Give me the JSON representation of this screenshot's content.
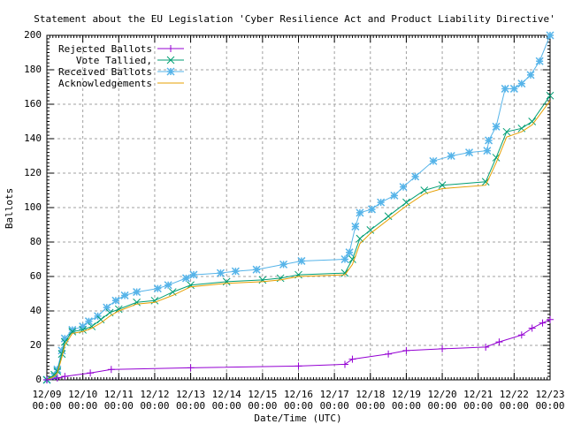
{
  "chart_data": {
    "type": "line",
    "title": "Statement about the EU Legislation 'Cyber Resilience Act and Product Liability Directive'",
    "xlabel": "Date/Time (UTC)",
    "ylabel": "Ballots",
    "xlim": [
      "12/09 00:00",
      "12/23 00:00"
    ],
    "ylim": [
      0,
      200
    ],
    "x_ticks": [
      "12/09",
      "12/10",
      "12/11",
      "12/12",
      "12/13",
      "12/14",
      "12/15",
      "12/16",
      "12/17",
      "12/18",
      "12/19",
      "12/20",
      "12/21",
      "12/22",
      "12/23"
    ],
    "x_tick_time": "00:00",
    "y_ticks": [
      0,
      20,
      40,
      60,
      80,
      100,
      120,
      140,
      160,
      180,
      200
    ],
    "grid": true,
    "legend_position": "top-left",
    "series": [
      {
        "name": "Rejected Ballots",
        "color": "#9400d3",
        "marker": "plus",
        "points": [
          [
            "12/09 00:00",
            0
          ],
          [
            "12/09 07:00",
            1
          ],
          [
            "12/09 12:00",
            2
          ],
          [
            "12/10 05:00",
            4
          ],
          [
            "12/10 19:00",
            6
          ],
          [
            "12/13 00:00",
            7
          ],
          [
            "12/16 00:00",
            8
          ],
          [
            "12/17 07:00",
            9
          ],
          [
            "12/17 12:00",
            12
          ],
          [
            "12/18 12:00",
            15
          ],
          [
            "12/19 00:00",
            17
          ],
          [
            "12/20 00:00",
            18
          ],
          [
            "12/21 05:00",
            19
          ],
          [
            "12/21 14:00",
            22
          ],
          [
            "12/22 05:00",
            26
          ],
          [
            "12/22 12:00",
            30
          ],
          [
            "12/22 19:00",
            33
          ],
          [
            "12/23 00:00",
            35
          ]
        ]
      },
      {
        "name": "Vote Tallied,",
        "color": "#009e73",
        "marker": "cross",
        "points": [
          [
            "12/09 00:00",
            0
          ],
          [
            "12/09 05:00",
            3
          ],
          [
            "12/09 07:00",
            5
          ],
          [
            "12/09 10:00",
            15
          ],
          [
            "12/09 12:00",
            22
          ],
          [
            "12/09 17:00",
            28
          ],
          [
            "12/10 00:00",
            29
          ],
          [
            "12/10 06:00",
            31
          ],
          [
            "12/10 12:00",
            35
          ],
          [
            "12/10 18:00",
            39
          ],
          [
            "12/11 00:00",
            41
          ],
          [
            "12/11 12:00",
            45
          ],
          [
            "12/12 00:00",
            46
          ],
          [
            "12/12 12:00",
            51
          ],
          [
            "12/13 00:00",
            55
          ],
          [
            "12/14 00:00",
            57
          ],
          [
            "12/15 00:00",
            58
          ],
          [
            "12/15 12:00",
            59
          ],
          [
            "12/16 00:00",
            61
          ],
          [
            "12/17 07:00",
            62
          ],
          [
            "12/17 12:00",
            70
          ],
          [
            "12/17 17:00",
            82
          ],
          [
            "12/18 00:00",
            87
          ],
          [
            "12/18 12:00",
            95
          ],
          [
            "12/19 00:00",
            103
          ],
          [
            "12/19 12:00",
            110
          ],
          [
            "12/20 00:00",
            113
          ],
          [
            "12/21 05:00",
            115
          ],
          [
            "12/21 12:00",
            129
          ],
          [
            "12/21 19:00",
            144
          ],
          [
            "12/22 05:00",
            146
          ],
          [
            "12/22 12:00",
            150
          ],
          [
            "12/23 00:00",
            165
          ]
        ]
      },
      {
        "name": "Received Ballots",
        "color": "#56b4e9",
        "marker": "star",
        "points": [
          [
            "12/09 00:00",
            0
          ],
          [
            "12/09 05:00",
            2
          ],
          [
            "12/09 07:00",
            6
          ],
          [
            "12/09 10:00",
            17
          ],
          [
            "12/09 12:00",
            24
          ],
          [
            "12/09 17:00",
            29
          ],
          [
            "12/10 00:00",
            31
          ],
          [
            "12/10 04:00",
            34
          ],
          [
            "12/10 10:00",
            37
          ],
          [
            "12/10 16:00",
            42
          ],
          [
            "12/10 22:00",
            46
          ],
          [
            "12/11 04:00",
            49
          ],
          [
            "12/11 12:00",
            51
          ],
          [
            "12/12 02:00",
            53
          ],
          [
            "12/12 09:00",
            55
          ],
          [
            "12/12 21:00",
            59
          ],
          [
            "12/13 02:00",
            61
          ],
          [
            "12/13 20:00",
            62
          ],
          [
            "12/14 06:00",
            63
          ],
          [
            "12/14 20:00",
            64
          ],
          [
            "12/15 14:00",
            67
          ],
          [
            "12/16 02:00",
            69
          ],
          [
            "12/17 07:00",
            70
          ],
          [
            "12/17 10:00",
            74
          ],
          [
            "12/17 14:00",
            89
          ],
          [
            "12/17 17:00",
            97
          ],
          [
            "12/18 01:00",
            99
          ],
          [
            "12/18 07:00",
            103
          ],
          [
            "12/18 16:00",
            107
          ],
          [
            "12/18 22:00",
            112
          ],
          [
            "12/19 06:00",
            118
          ],
          [
            "12/19 18:00",
            127
          ],
          [
            "12/20 06:00",
            130
          ],
          [
            "12/20 18:00",
            132
          ],
          [
            "12/21 06:00",
            133
          ],
          [
            "12/21 07:00",
            139
          ],
          [
            "12/21 12:00",
            147
          ],
          [
            "12/21 18:00",
            169
          ],
          [
            "12/22 00:00",
            169
          ],
          [
            "12/22 05:00",
            172
          ],
          [
            "12/22 11:00",
            177
          ],
          [
            "12/22 17:00",
            185
          ],
          [
            "12/23 00:00",
            200
          ]
        ]
      },
      {
        "name": "Acknowledgements",
        "color": "#e69f00",
        "marker": "none",
        "points": [
          [
            "12/09 00:00",
            0
          ],
          [
            "12/09 05:00",
            2
          ],
          [
            "12/09 07:00",
            4
          ],
          [
            "12/09 10:00",
            13
          ],
          [
            "12/09 12:00",
            20
          ],
          [
            "12/09 17:00",
            27
          ],
          [
            "12/10 00:00",
            28
          ],
          [
            "12/10 06:00",
            30
          ],
          [
            "12/10 12:00",
            33
          ],
          [
            "12/10 18:00",
            37
          ],
          [
            "12/11 00:00",
            40
          ],
          [
            "12/11 12:00",
            44
          ],
          [
            "12/12 00:00",
            45
          ],
          [
            "12/12 12:00",
            49
          ],
          [
            "12/13 00:00",
            54
          ],
          [
            "12/14 00:00",
            56
          ],
          [
            "12/15 00:00",
            57
          ],
          [
            "12/15 12:00",
            58
          ],
          [
            "12/16 00:00",
            60
          ],
          [
            "12/17 07:00",
            61
          ],
          [
            "12/17 12:00",
            67
          ],
          [
            "12/17 17:00",
            79
          ],
          [
            "12/18 00:00",
            85
          ],
          [
            "12/18 12:00",
            93
          ],
          [
            "12/19 00:00",
            101
          ],
          [
            "12/19 12:00",
            108
          ],
          [
            "12/20 00:00",
            111
          ],
          [
            "12/21 05:00",
            113
          ],
          [
            "12/21 12:00",
            126
          ],
          [
            "12/21 19:00",
            141
          ],
          [
            "12/22 05:00",
            144
          ],
          [
            "12/22 12:00",
            148
          ],
          [
            "12/23 00:00",
            162
          ]
        ]
      }
    ]
  }
}
